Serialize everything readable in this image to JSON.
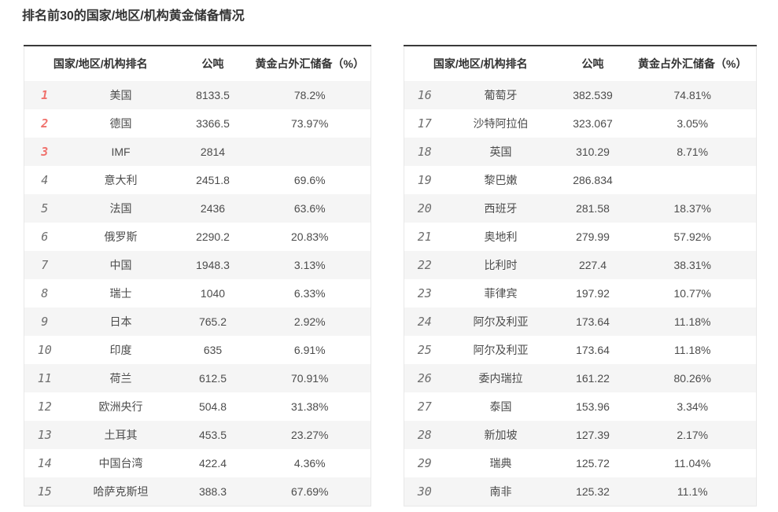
{
  "title": "排名前30的国家/地区/机构黄金储备情况",
  "headers": [
    "国家/地区/机构排名",
    "公吨",
    "黄金占外汇储备（%）"
  ],
  "colors": {
    "top3_rank": "#f0716c",
    "rank": "#6e6e6e",
    "row_stripe": "#f5f5f5",
    "table_top_border": "#3a3a3a",
    "table_border": "#e8e8e8",
    "text": "#4c4c4c",
    "header_text": "#333333"
  },
  "tables": [
    {
      "name": "ranks-1-15",
      "rows": [
        {
          "rank": "1",
          "name": "美国",
          "tonnes": "8133.5",
          "pct": "78.2%",
          "top3": true
        },
        {
          "rank": "2",
          "name": "德国",
          "tonnes": "3366.5",
          "pct": "73.97%",
          "top3": true
        },
        {
          "rank": "3",
          "name": "IMF",
          "tonnes": "2814",
          "pct": "",
          "top3": true
        },
        {
          "rank": "4",
          "name": "意大利",
          "tonnes": "2451.8",
          "pct": "69.6%",
          "top3": false
        },
        {
          "rank": "5",
          "name": "法国",
          "tonnes": "2436",
          "pct": "63.6%",
          "top3": false
        },
        {
          "rank": "6",
          "name": "俄罗斯",
          "tonnes": "2290.2",
          "pct": "20.83%",
          "top3": false
        },
        {
          "rank": "7",
          "name": "中国",
          "tonnes": "1948.3",
          "pct": "3.13%",
          "top3": false
        },
        {
          "rank": "8",
          "name": "瑞士",
          "tonnes": "1040",
          "pct": "6.33%",
          "top3": false
        },
        {
          "rank": "9",
          "name": "日本",
          "tonnes": "765.2",
          "pct": "2.92%",
          "top3": false
        },
        {
          "rank": "10",
          "name": "印度",
          "tonnes": "635",
          "pct": "6.91%",
          "top3": false
        },
        {
          "rank": "11",
          "name": "荷兰",
          "tonnes": "612.5",
          "pct": "70.91%",
          "top3": false
        },
        {
          "rank": "12",
          "name": "欧洲央行",
          "tonnes": "504.8",
          "pct": "31.38%",
          "top3": false
        },
        {
          "rank": "13",
          "name": "土耳其",
          "tonnes": "453.5",
          "pct": "23.27%",
          "top3": false
        },
        {
          "rank": "14",
          "name": "中国台湾",
          "tonnes": "422.4",
          "pct": "4.36%",
          "top3": false
        },
        {
          "rank": "15",
          "name": "哈萨克斯坦",
          "tonnes": "388.3",
          "pct": "67.69%",
          "top3": false
        }
      ]
    },
    {
      "name": "ranks-16-30",
      "rows": [
        {
          "rank": "16",
          "name": "葡萄牙",
          "tonnes": "382.539",
          "pct": "74.81%",
          "top3": false
        },
        {
          "rank": "17",
          "name": "沙特阿拉伯",
          "tonnes": "323.067",
          "pct": "3.05%",
          "top3": false
        },
        {
          "rank": "18",
          "name": "英国",
          "tonnes": "310.29",
          "pct": "8.71%",
          "top3": false
        },
        {
          "rank": "19",
          "name": "黎巴嫩",
          "tonnes": "286.834",
          "pct": "",
          "top3": false
        },
        {
          "rank": "20",
          "name": "西班牙",
          "tonnes": "281.58",
          "pct": "18.37%",
          "top3": false
        },
        {
          "rank": "21",
          "name": "奥地利",
          "tonnes": "279.99",
          "pct": "57.92%",
          "top3": false
        },
        {
          "rank": "22",
          "name": "比利时",
          "tonnes": "227.4",
          "pct": "38.31%",
          "top3": false
        },
        {
          "rank": "23",
          "name": "菲律宾",
          "tonnes": "197.92",
          "pct": "10.77%",
          "top3": false
        },
        {
          "rank": "24",
          "name": "阿尔及利亚",
          "tonnes": "173.64",
          "pct": "11.18%",
          "top3": false
        },
        {
          "rank": "25",
          "name": "阿尔及利亚",
          "tonnes": "173.64",
          "pct": "11.18%",
          "top3": false
        },
        {
          "rank": "26",
          "name": "委内瑞拉",
          "tonnes": "161.22",
          "pct": "80.26%",
          "top3": false
        },
        {
          "rank": "27",
          "name": "泰国",
          "tonnes": "153.96",
          "pct": "3.34%",
          "top3": false
        },
        {
          "rank": "28",
          "name": "新加坡",
          "tonnes": "127.39",
          "pct": "2.17%",
          "top3": false
        },
        {
          "rank": "29",
          "name": "瑞典",
          "tonnes": "125.72",
          "pct": "11.04%",
          "top3": false
        },
        {
          "rank": "30",
          "name": "南非",
          "tonnes": "125.32",
          "pct": "11.1%",
          "top3": false
        }
      ]
    }
  ]
}
